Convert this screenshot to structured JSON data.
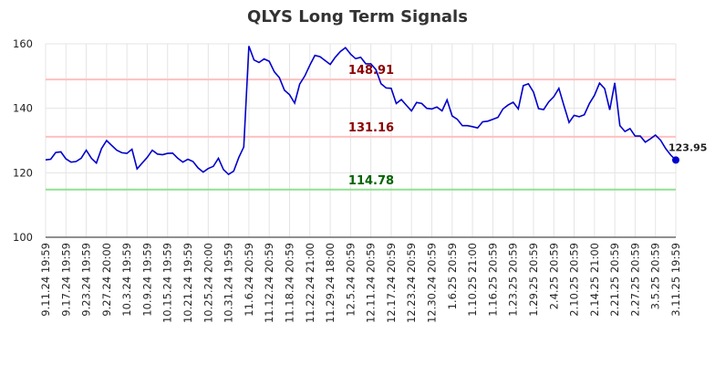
{
  "chart_data": {
    "type": "line",
    "title": "QLYS Long Term Signals",
    "categories": [
      "9.11.24 19:59",
      null,
      null,
      null,
      "9.17.24 19:59",
      null,
      null,
      null,
      "9.23.24 19:59",
      null,
      null,
      null,
      "9.27.24 20:00",
      null,
      null,
      null,
      "10.3.24 19:59",
      null,
      null,
      null,
      "10.9.24 19:59",
      null,
      null,
      null,
      "10.15.24 19:59",
      null,
      null,
      null,
      "10.21.24 19:59",
      null,
      null,
      null,
      "10.25.24 20:00",
      null,
      null,
      null,
      "10.31.24 19:59",
      null,
      null,
      null,
      "11.6.24 20:59",
      null,
      null,
      null,
      "11.12.24 20:59",
      null,
      null,
      null,
      "11.18.24 20:59",
      null,
      null,
      null,
      "11.22.24 21:00",
      null,
      null,
      null,
      "11.29.24 18:00",
      null,
      null,
      null,
      "12.5.24 20:59",
      null,
      null,
      null,
      "12.11.24 20:59",
      null,
      null,
      null,
      "12.17.24 20:59",
      null,
      null,
      null,
      "12.23.24 20:59",
      null,
      null,
      null,
      "12.30.24 20:59",
      null,
      null,
      null,
      "1.6.25 20:59",
      null,
      null,
      null,
      "1.10.25 21:00",
      null,
      null,
      null,
      "1.16.25 20:59",
      null,
      null,
      null,
      "1.23.25 20:59",
      null,
      null,
      null,
      "1.29.25 20:59",
      null,
      null,
      null,
      "2.4.25 20:59",
      null,
      null,
      null,
      "2.10.25 20:59",
      null,
      null,
      null,
      "2.14.25 21:00",
      null,
      null,
      null,
      "2.21.25 20:59",
      null,
      null,
      null,
      "2.27.25 20:59",
      null,
      null,
      null,
      "3.5.25 20:59",
      null,
      null,
      null,
      "3.11.25 19:59"
    ],
    "values": [
      124,
      124.2,
      126.3,
      126.5,
      124.3,
      123.3,
      123.5,
      124.5,
      127,
      124.5,
      123,
      127.5,
      130,
      128.5,
      127,
      126.2,
      126,
      127.3,
      121.2,
      123,
      124.8,
      127,
      125.8,
      125.6,
      126,
      126.1,
      124.5,
      123.3,
      124.2,
      123.5,
      121.5,
      120.2,
      121.3,
      122,
      124.5,
      121,
      119.5,
      120.5,
      124.7,
      128,
      159.3,
      155,
      154.2,
      155.3,
      154.6,
      151.3,
      149.5,
      145.6,
      144.2,
      141.6,
      147.5,
      150,
      153.4,
      156.4,
      156,
      154.8,
      153.6,
      155.8,
      157.6,
      158.8,
      156.8,
      155.4,
      155.8,
      153.8,
      153.8,
      152,
      147.6,
      146.3,
      146.2,
      141.5,
      142.7,
      140.9,
      139.2,
      141.8,
      141.5,
      140,
      139.8,
      140.4,
      139.2,
      142.6,
      137.6,
      136.6,
      134.6,
      134.6,
      134.3,
      133.9,
      135.8,
      136,
      136.6,
      137.2,
      139.8,
      141,
      141.9,
      139.8,
      147,
      147.6,
      145,
      139.9,
      139.6,
      142,
      143.6,
      146.2,
      140.8,
      135.6,
      137.8,
      137.4,
      138,
      141.5,
      144,
      147.8,
      146.1,
      139.5,
      147.9,
      134.6,
      132.8,
      133.7,
      131.4,
      131.4,
      129.5,
      130.5,
      131.7,
      130.1,
      127.5,
      125.5,
      123.95
    ],
    "color": "#0000cc",
    "ylim": [
      100,
      160
    ],
    "yticks": [
      100,
      120,
      140,
      160
    ],
    "grid": true,
    "levels": [
      {
        "value": 148.91,
        "color": "#ffc0c0",
        "label_color": "#8b0000"
      },
      {
        "value": 131.16,
        "color": "#ffc0c0",
        "label_color": "#8b0000"
      },
      {
        "value": 114.78,
        "color": "#90e090",
        "label_color": "#006400"
      }
    ]
  }
}
